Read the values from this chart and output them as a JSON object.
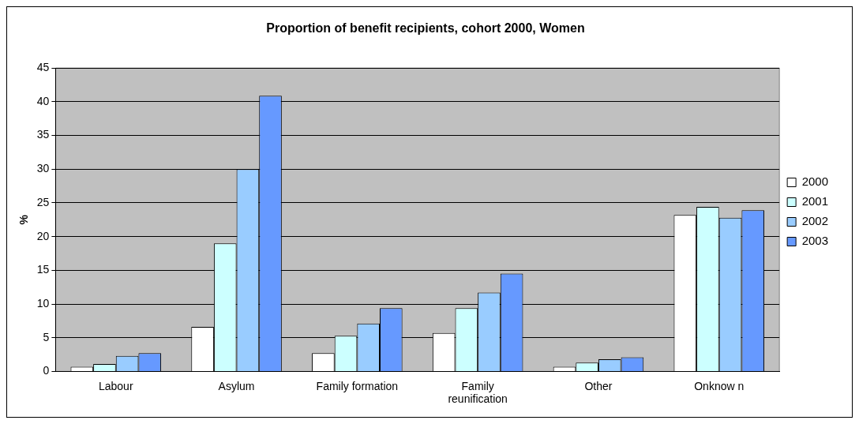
{
  "chart_data": {
    "type": "bar",
    "title": "Proportion of benefit recipients, cohort 2000, Women",
    "ylabel": "%",
    "categories": [
      "Labour",
      "Asylum",
      "Family formation",
      "Family reunification",
      "Other",
      "Onknow n"
    ],
    "series": [
      {
        "name": "2000",
        "color": "#ffffff",
        "values": [
          0.7,
          6.6,
          2.7,
          5.7,
          0.7,
          23.2
        ]
      },
      {
        "name": "2001",
        "color": "#ccffff",
        "values": [
          1.1,
          19,
          5.3,
          9.4,
          1.3,
          24.4
        ]
      },
      {
        "name": "2002",
        "color": "#99ccff",
        "values": [
          2.3,
          30,
          7.1,
          11.7,
          1.8,
          22.8
        ]
      },
      {
        "name": "2003",
        "color": "#6699ff",
        "values": [
          2.7,
          40.9,
          9.4,
          14.5,
          2.1,
          23.9
        ]
      }
    ],
    "ylim": [
      0,
      45
    ],
    "yticks": [
      0,
      5,
      10,
      15,
      20,
      25,
      30,
      35,
      40,
      45
    ],
    "grid": "y",
    "legend": "right"
  }
}
